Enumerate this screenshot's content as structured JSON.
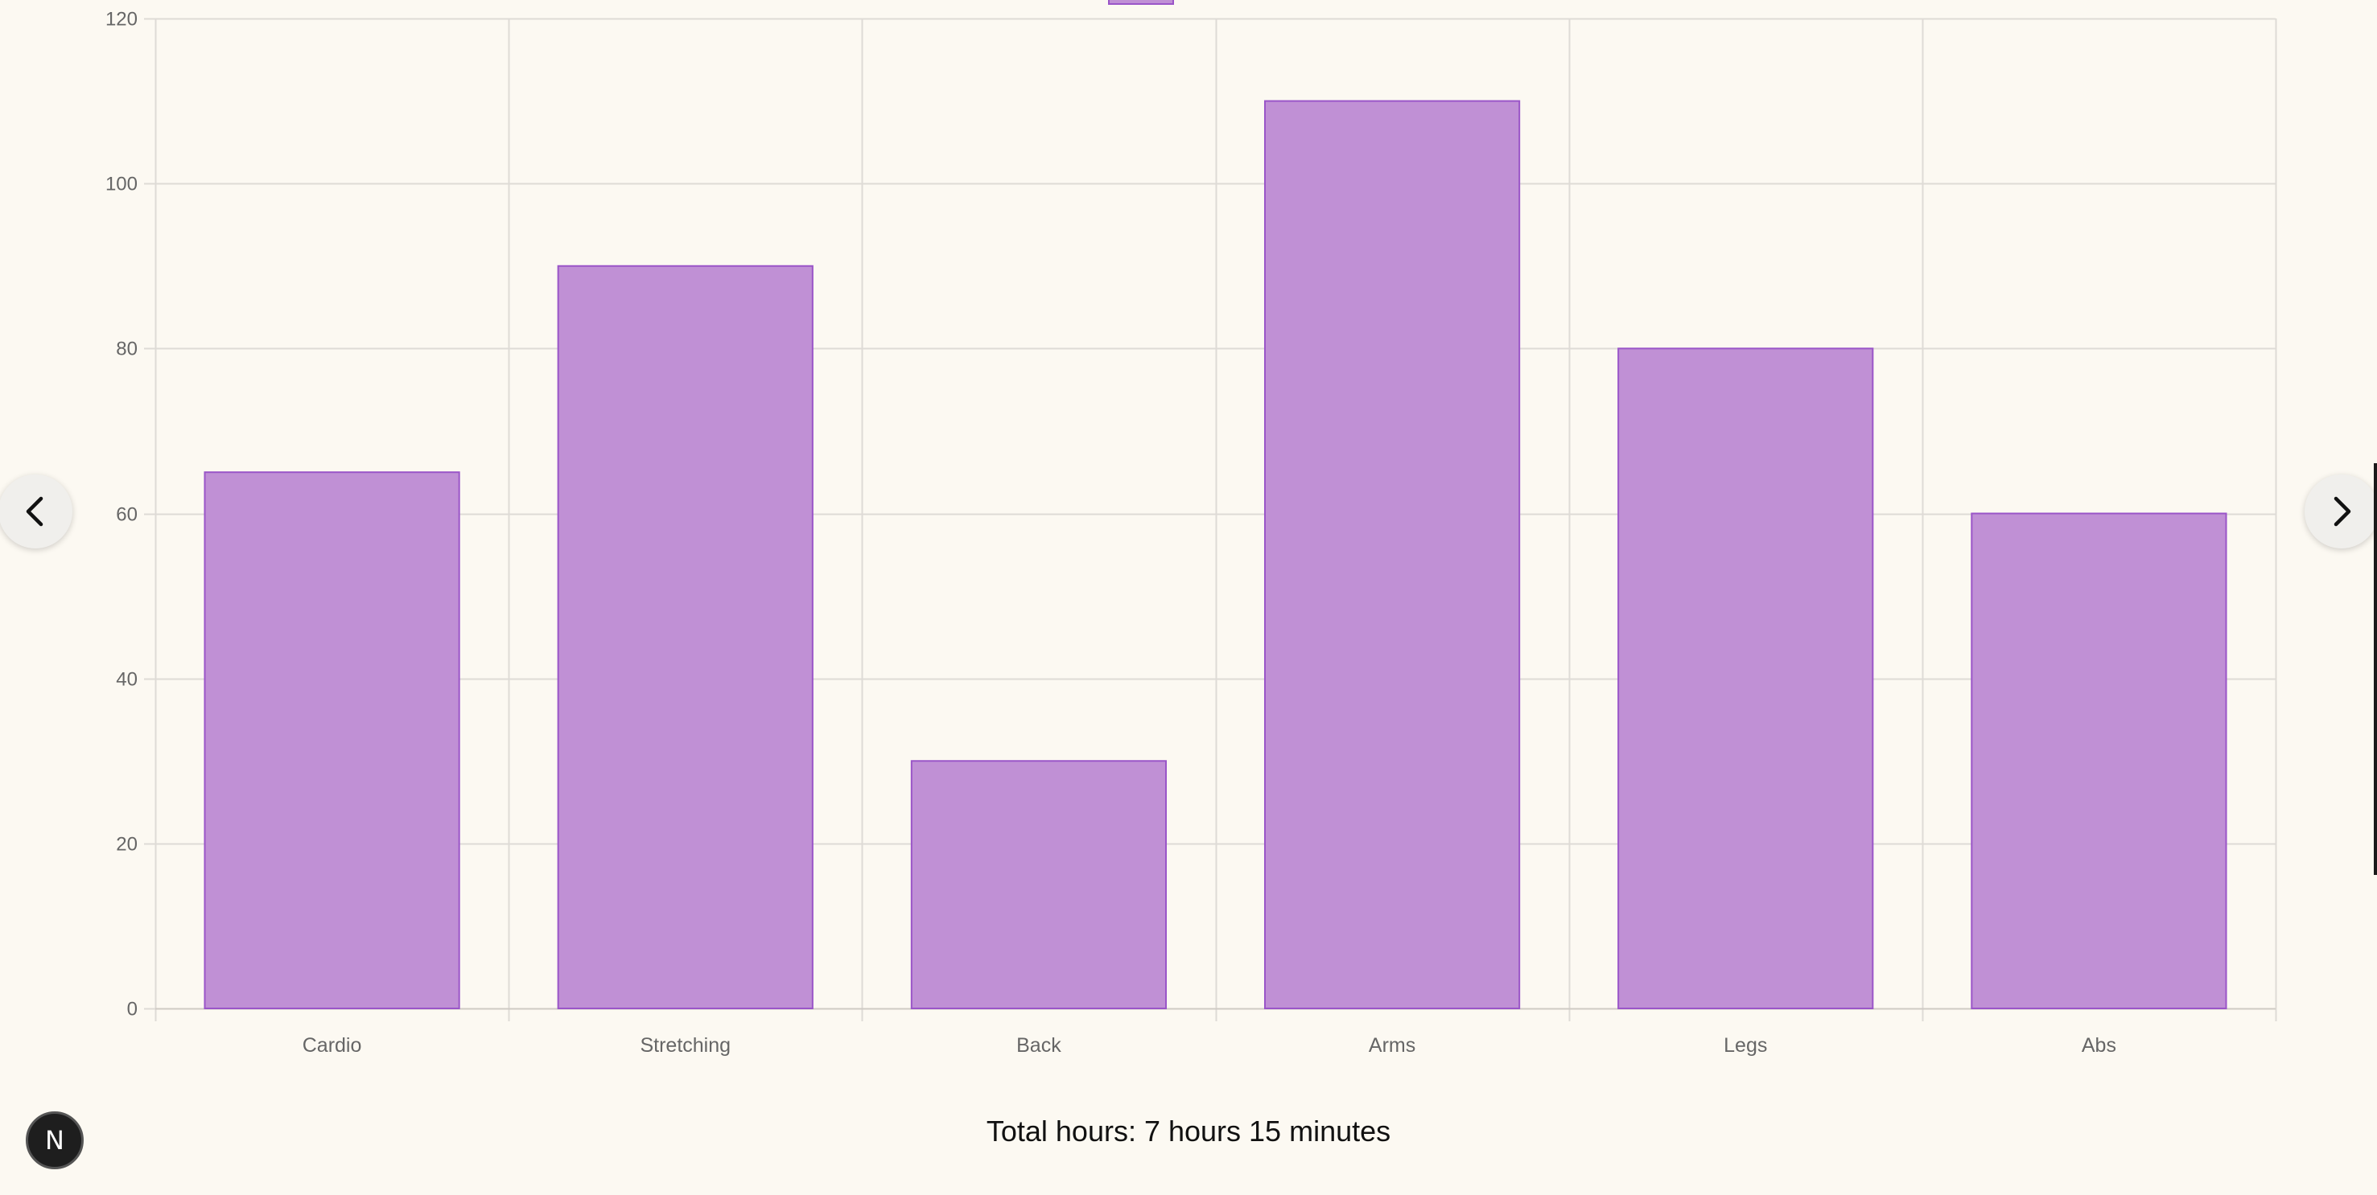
{
  "chart_data": {
    "type": "bar",
    "categories": [
      "Cardio",
      "Stretching",
      "Back",
      "Arms",
      "Legs",
      "Abs"
    ],
    "values": [
      65,
      90,
      30,
      110,
      80,
      60
    ],
    "ylim": [
      0,
      120
    ],
    "yticks": [
      0,
      20,
      40,
      60,
      80,
      100,
      120
    ],
    "grid": true,
    "legend": "top",
    "title": "",
    "xlabel": "",
    "ylabel": "",
    "bar_fill": "#c090d5",
    "bar_border": "#9a55c8",
    "grid_color": "#dedbd6"
  },
  "navigation": {
    "prev_icon": "chevron-left-icon",
    "next_icon": "chevron-right-icon"
  },
  "summary": {
    "total_label": "Total hours: 7 hours 15 minutes"
  },
  "logo": {
    "letter": "N"
  }
}
